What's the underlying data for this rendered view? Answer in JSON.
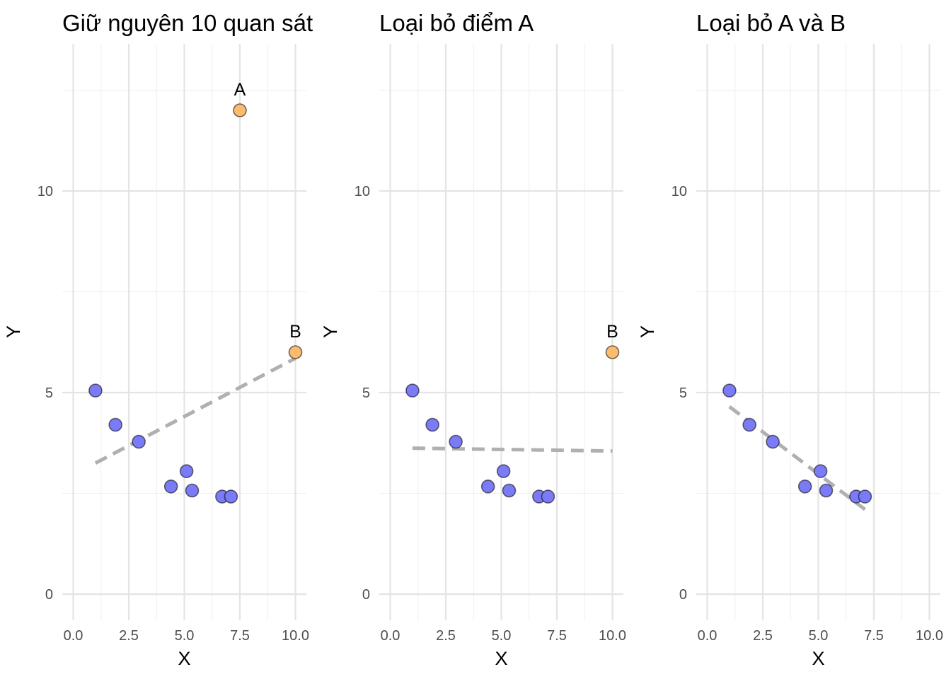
{
  "chart_data": [
    {
      "type": "scatter",
      "title": "Giữ nguyên 10 quan sát",
      "xlabel": "X",
      "ylabel": "Y",
      "xlim": [
        -0.5,
        10.5
      ],
      "ylim": [
        -0.5,
        13.7
      ],
      "x_ticks": [
        "0.0",
        "2.5",
        "5.0",
        "7.5",
        "10.0"
      ],
      "x_tick_values": [
        0,
        2.5,
        5,
        7.5,
        10
      ],
      "y_ticks": [
        "0",
        "5",
        "10"
      ],
      "y_tick_values": [
        0,
        5,
        10
      ],
      "grid": true,
      "points": [
        {
          "x": 1.0,
          "y": 5.05,
          "color": "#7b7bf7"
        },
        {
          "x": 1.9,
          "y": 4.2,
          "color": "#7b7bf7"
        },
        {
          "x": 2.95,
          "y": 3.78,
          "color": "#7b7bf7"
        },
        {
          "x": 4.4,
          "y": 2.67,
          "color": "#7b7bf7"
        },
        {
          "x": 5.1,
          "y": 3.05,
          "color": "#7b7bf7"
        },
        {
          "x": 5.35,
          "y": 2.57,
          "color": "#7b7bf7"
        },
        {
          "x": 6.7,
          "y": 2.42,
          "color": "#7b7bf7"
        },
        {
          "x": 7.1,
          "y": 2.42,
          "color": "#7b7bf7"
        },
        {
          "x": 7.5,
          "y": 12.0,
          "color": "#fdbb6f",
          "label": "A"
        },
        {
          "x": 10.0,
          "y": 6.0,
          "color": "#fdbb6f",
          "label": "B"
        }
      ],
      "fit_line": {
        "x": [
          1.0,
          10.0
        ],
        "y": [
          3.25,
          5.85
        ],
        "style": "dashed",
        "color": "#b0b0b0"
      }
    },
    {
      "type": "scatter",
      "title": "Loại bỏ điểm A",
      "xlabel": "X",
      "ylabel": "Y",
      "xlim": [
        -0.5,
        10.5
      ],
      "ylim": [
        -0.5,
        13.7
      ],
      "x_ticks": [
        "0.0",
        "2.5",
        "5.0",
        "7.5",
        "10.0"
      ],
      "x_tick_values": [
        0,
        2.5,
        5,
        7.5,
        10
      ],
      "y_ticks": [
        "0",
        "5",
        "10"
      ],
      "y_tick_values": [
        0,
        5,
        10
      ],
      "grid": true,
      "points": [
        {
          "x": 1.0,
          "y": 5.05,
          "color": "#7b7bf7"
        },
        {
          "x": 1.9,
          "y": 4.2,
          "color": "#7b7bf7"
        },
        {
          "x": 2.95,
          "y": 3.78,
          "color": "#7b7bf7"
        },
        {
          "x": 4.4,
          "y": 2.67,
          "color": "#7b7bf7"
        },
        {
          "x": 5.1,
          "y": 3.05,
          "color": "#7b7bf7"
        },
        {
          "x": 5.35,
          "y": 2.57,
          "color": "#7b7bf7"
        },
        {
          "x": 6.7,
          "y": 2.42,
          "color": "#7b7bf7"
        },
        {
          "x": 7.1,
          "y": 2.42,
          "color": "#7b7bf7"
        },
        {
          "x": 10.0,
          "y": 6.0,
          "color": "#fdbb6f",
          "label": "B"
        }
      ],
      "fit_line": {
        "x": [
          1.0,
          10.0
        ],
        "y": [
          3.62,
          3.55
        ],
        "style": "dashed",
        "color": "#b0b0b0"
      }
    },
    {
      "type": "scatter",
      "title": "Loại bỏ A và B",
      "xlabel": "X",
      "ylabel": "Y",
      "xlim": [
        -0.5,
        10.5
      ],
      "ylim": [
        -0.5,
        13.7
      ],
      "x_ticks": [
        "0.0",
        "2.5",
        "5.0",
        "7.5",
        "10.0"
      ],
      "x_tick_values": [
        0,
        2.5,
        5,
        7.5,
        10
      ],
      "y_ticks": [
        "0",
        "5",
        "10"
      ],
      "y_tick_values": [
        0,
        5,
        10
      ],
      "grid": true,
      "points": [
        {
          "x": 1.0,
          "y": 5.05,
          "color": "#7b7bf7"
        },
        {
          "x": 1.9,
          "y": 4.2,
          "color": "#7b7bf7"
        },
        {
          "x": 2.95,
          "y": 3.78,
          "color": "#7b7bf7"
        },
        {
          "x": 4.4,
          "y": 2.67,
          "color": "#7b7bf7"
        },
        {
          "x": 5.1,
          "y": 3.05,
          "color": "#7b7bf7"
        },
        {
          "x": 5.35,
          "y": 2.57,
          "color": "#7b7bf7"
        },
        {
          "x": 6.7,
          "y": 2.42,
          "color": "#7b7bf7"
        },
        {
          "x": 7.1,
          "y": 2.42,
          "color": "#7b7bf7"
        }
      ],
      "fit_line": {
        "x": [
          1.0,
          7.1
        ],
        "y": [
          4.65,
          2.1
        ],
        "style": "dashed",
        "color": "#b0b0b0"
      }
    }
  ]
}
